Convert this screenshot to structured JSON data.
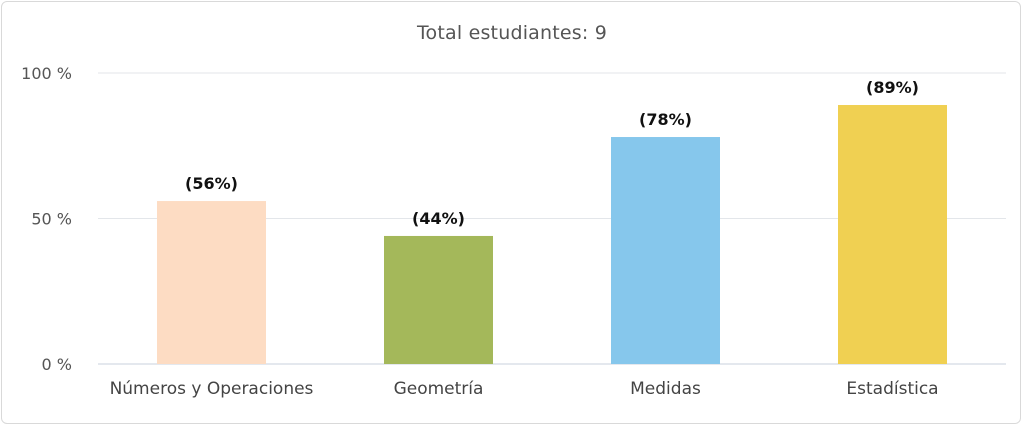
{
  "chart_data": {
    "type": "bar",
    "title": "Total estudiantes: 9",
    "categories": [
      "Números y Operaciones",
      "Geometría",
      "Medidas",
      "Estadística"
    ],
    "values": [
      56,
      44,
      78,
      89
    ],
    "data_labels": [
      "(56%)",
      "(44%)",
      "(78%)",
      "(89%)"
    ],
    "colors": [
      "#fddcc3",
      "#a4b85a",
      "#86c7ec",
      "#f0d052"
    ],
    "ylim": [
      0,
      100
    ],
    "yticks": [
      {
        "value": 0,
        "label": "0 %"
      },
      {
        "value": 50,
        "label": "50 %"
      },
      {
        "value": 100,
        "label": "100 %"
      }
    ],
    "grid": true,
    "legend": "none"
  }
}
